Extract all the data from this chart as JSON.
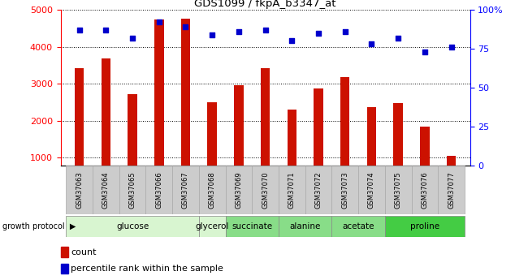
{
  "title": "GDS1099 / fkpA_b3347_at",
  "samples": [
    "GSM37063",
    "GSM37064",
    "GSM37065",
    "GSM37066",
    "GSM37067",
    "GSM37068",
    "GSM37069",
    "GSM37070",
    "GSM37071",
    "GSM37072",
    "GSM37073",
    "GSM37074",
    "GSM37075",
    "GSM37076",
    "GSM37077"
  ],
  "counts": [
    3430,
    3680,
    2720,
    4730,
    4750,
    2500,
    2960,
    3430,
    2310,
    2880,
    3180,
    2380,
    2480,
    1840,
    1050
  ],
  "percentiles": [
    87,
    87,
    82,
    92,
    89,
    84,
    86,
    87,
    80,
    85,
    86,
    78,
    82,
    73,
    76
  ],
  "groups": [
    {
      "label": "glucose",
      "start": 0,
      "end": 4,
      "color": "#d8f5d0"
    },
    {
      "label": "glycerol",
      "start": 5,
      "end": 5,
      "color": "#d8f5d0"
    },
    {
      "label": "succinate",
      "start": 6,
      "end": 7,
      "color": "#88dd88"
    },
    {
      "label": "alanine",
      "start": 8,
      "end": 9,
      "color": "#88dd88"
    },
    {
      "label": "acetate",
      "start": 10,
      "end": 11,
      "color": "#88dd88"
    },
    {
      "label": "proline",
      "start": 12,
      "end": 14,
      "color": "#44cc44"
    }
  ],
  "bar_color": "#cc1100",
  "dot_color": "#0000cc",
  "ylim_left": [
    800,
    5000
  ],
  "ylim_right": [
    0,
    100
  ],
  "yticks_left": [
    1000,
    2000,
    3000,
    4000,
    5000
  ],
  "yticks_right": [
    0,
    25,
    50,
    75,
    100
  ],
  "figsize": [
    6.5,
    3.45
  ],
  "dpi": 100,
  "bar_width": 0.35,
  "sample_box_color": "#cccccc",
  "growth_protocol_label": "growth protocol  ▶"
}
